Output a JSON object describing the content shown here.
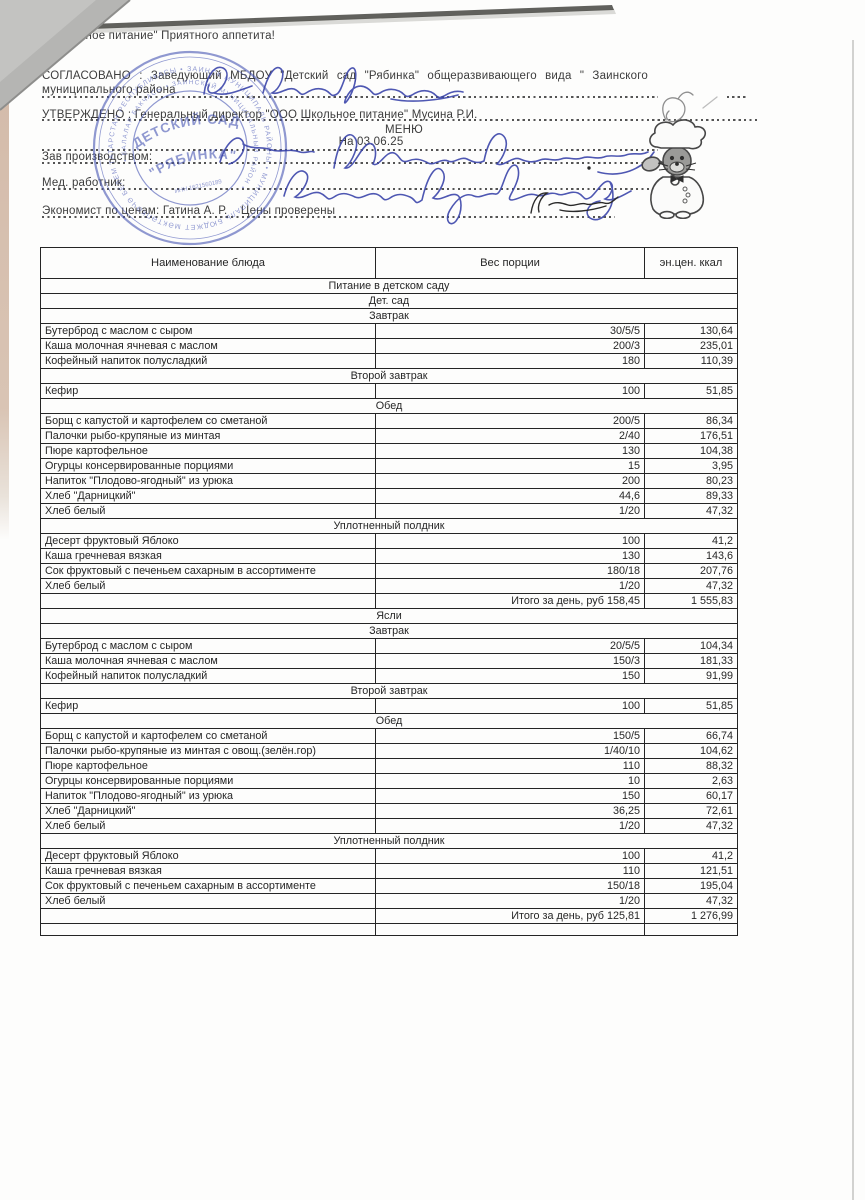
{
  "document": {
    "top_line": "Школьное питание\" Приятного аппетита!",
    "agreed": {
      "line1": "СОГЛАСОВАНО : Заведующий МБДОУ \"Детский сад \"Рябинка\" общеразвивающего вида \" Заинского",
      "line2": "муниципального района"
    },
    "approved_line": "УТВЕРЖДЕНО : Генеральный директор \"ООО Школьное питание\" Мусина Р.И.",
    "menu": {
      "title": "МЕНЮ",
      "date_line": "На 03.06.25"
    },
    "signature_labels": {
      "production_manager": "Зав производством:",
      "medical_worker": "Мед. работник:",
      "economist": "Экономист по ценам: Гатина А. Р.    Цены проверены"
    }
  },
  "stamp": {
    "color": "#4150b2",
    "center_line1": "ДЕТСКИЙ САД",
    "center_line2": "\"РЯБИНКА\"",
    "center_sub": "ИНН 1621560189",
    "ring_outer": "ТАТАРСТАН РЕСПУБЛИКАСЫ • ЗАИНСК МУНИЦИПАЛЬ РАЙОНЫ • МУНИЦИПАЛЬ БЮДЖЕТ МӘКТӘПКӘЧӘ БЕЛЕМ БИРҮ УЧРЕЖДЕНИЕСЕ •",
    "ring_inner": "• БАЛАЛАР БАКЧАСЫ • ЗАИНСКИЙ МУНИЦИПАЛЬНЫЙ РАЙОН •"
  },
  "illustration": {
    "name": "chef-cat-with-ladle"
  },
  "ink": {
    "blue": "#3c46ab",
    "black": "#2a2a2a",
    "grey": "#8f8f8f"
  },
  "table": {
    "headers": [
      "Наименование блюда",
      "Вес порции",
      "эн.цен. ккал"
    ],
    "rows": [
      {
        "t": "s",
        "label": "Питание в детском саду"
      },
      {
        "t": "s",
        "label": "Дет. сад"
      },
      {
        "t": "s",
        "label": "Завтрак"
      },
      {
        "t": "i",
        "name": "Бутерброд с маслом с сыром",
        "w": "30/5/5",
        "k": "130,64"
      },
      {
        "t": "i",
        "name": "Каша молочная ячневая с маслом",
        "w": "200/3",
        "k": "235,01"
      },
      {
        "t": "i",
        "name": "Кофейный напиток полусладкий",
        "w": "180",
        "k": "110,39"
      },
      {
        "t": "s",
        "label": "Второй завтрак"
      },
      {
        "t": "i",
        "name": "Кефир",
        "w": "100",
        "k": "51,85"
      },
      {
        "t": "s",
        "label": "Обед"
      },
      {
        "t": "i",
        "name": "Борщ с капустой и картофелем со сметаной",
        "w": "200/5",
        "k": "86,34"
      },
      {
        "t": "i",
        "name": "Палочки рыбо-крупяные из минтая",
        "w": "2/40",
        "k": "176,51"
      },
      {
        "t": "i",
        "name": "Пюре картофельное",
        "w": "130",
        "k": "104,38"
      },
      {
        "t": "i",
        "name": "Огурцы консервированные порциями",
        "w": "15",
        "k": "3,95"
      },
      {
        "t": "i",
        "name": "Напиток \"Плодово-ягодный\" из урюка",
        "w": "200",
        "k": "80,23"
      },
      {
        "t": "i",
        "name": "Хлеб \"Дарницкий\"",
        "w": "44,6",
        "k": "89,33"
      },
      {
        "t": "i",
        "name": "Хлеб белый",
        "w": "1/20",
        "k": "47,32"
      },
      {
        "t": "s",
        "label": "Уплотненный полдник"
      },
      {
        "t": "i",
        "name": "Десерт фруктовый Яблоко",
        "w": "100",
        "k": "41,2"
      },
      {
        "t": "i",
        "name": "Каша гречневая вязкая",
        "w": "130",
        "k": "143,6"
      },
      {
        "t": "i",
        "name": "Сок фруктовый с печеньем сахарным в ассортименте",
        "w": "180/18",
        "k": "207,76"
      },
      {
        "t": "i",
        "name": "Хлеб белый",
        "w": "1/20",
        "k": "47,32"
      },
      {
        "t": "t",
        "label": "Итого за день, руб 158,45",
        "k": "1 555,83"
      },
      {
        "t": "s",
        "label": "Ясли"
      },
      {
        "t": "s",
        "label": "Завтрак"
      },
      {
        "t": "i",
        "name": "Бутерброд с маслом с сыром",
        "w": "20/5/5",
        "k": "104,34"
      },
      {
        "t": "i",
        "name": "Каша молочная ячневая с маслом",
        "w": "150/3",
        "k": "181,33"
      },
      {
        "t": "i",
        "name": "Кофейный напиток полусладкий",
        "w": "150",
        "k": "91,99"
      },
      {
        "t": "s",
        "label": "Второй завтрак"
      },
      {
        "t": "i",
        "name": "Кефир",
        "w": "100",
        "k": "51,85"
      },
      {
        "t": "s",
        "label": "Обед"
      },
      {
        "t": "i",
        "name": "Борщ с капустой и картофелем со сметаной",
        "w": "150/5",
        "k": "66,74"
      },
      {
        "t": "i",
        "name": "Палочки рыбо-крупяные из минтая с овощ.(зелён.гор)",
        "w": "1/40/10",
        "k": "104,62"
      },
      {
        "t": "i",
        "name": "Пюре картофельное",
        "w": "110",
        "k": "88,32"
      },
      {
        "t": "i",
        "name": "Огурцы консервированные порциями",
        "w": "10",
        "k": "2,63"
      },
      {
        "t": "i",
        "name": "Напиток \"Плодово-ягодный\" из урюка",
        "w": "150",
        "k": "60,17"
      },
      {
        "t": "i",
        "name": "Хлеб \"Дарницкий\"",
        "w": "36,25",
        "k": "72,61"
      },
      {
        "t": "i",
        "name": "Хлеб белый",
        "w": "1/20",
        "k": "47,32"
      },
      {
        "t": "s",
        "label": "Уплотненный полдник"
      },
      {
        "t": "i",
        "name": "Десерт фруктовый Яблоко",
        "w": "100",
        "k": "41,2"
      },
      {
        "t": "i",
        "name": "Каша гречневая вязкая",
        "w": "110",
        "k": "121,51"
      },
      {
        "t": "i",
        "name": "Сок фруктовый с печеньем сахарным в ассортименте",
        "w": "150/18",
        "k": "195,04"
      },
      {
        "t": "i",
        "name": "Хлеб белый",
        "w": "1/20",
        "k": "47,32"
      },
      {
        "t": "t",
        "label": "Итого за день, руб 125,81",
        "k": "1 276,99"
      },
      {
        "t": "e"
      }
    ]
  }
}
